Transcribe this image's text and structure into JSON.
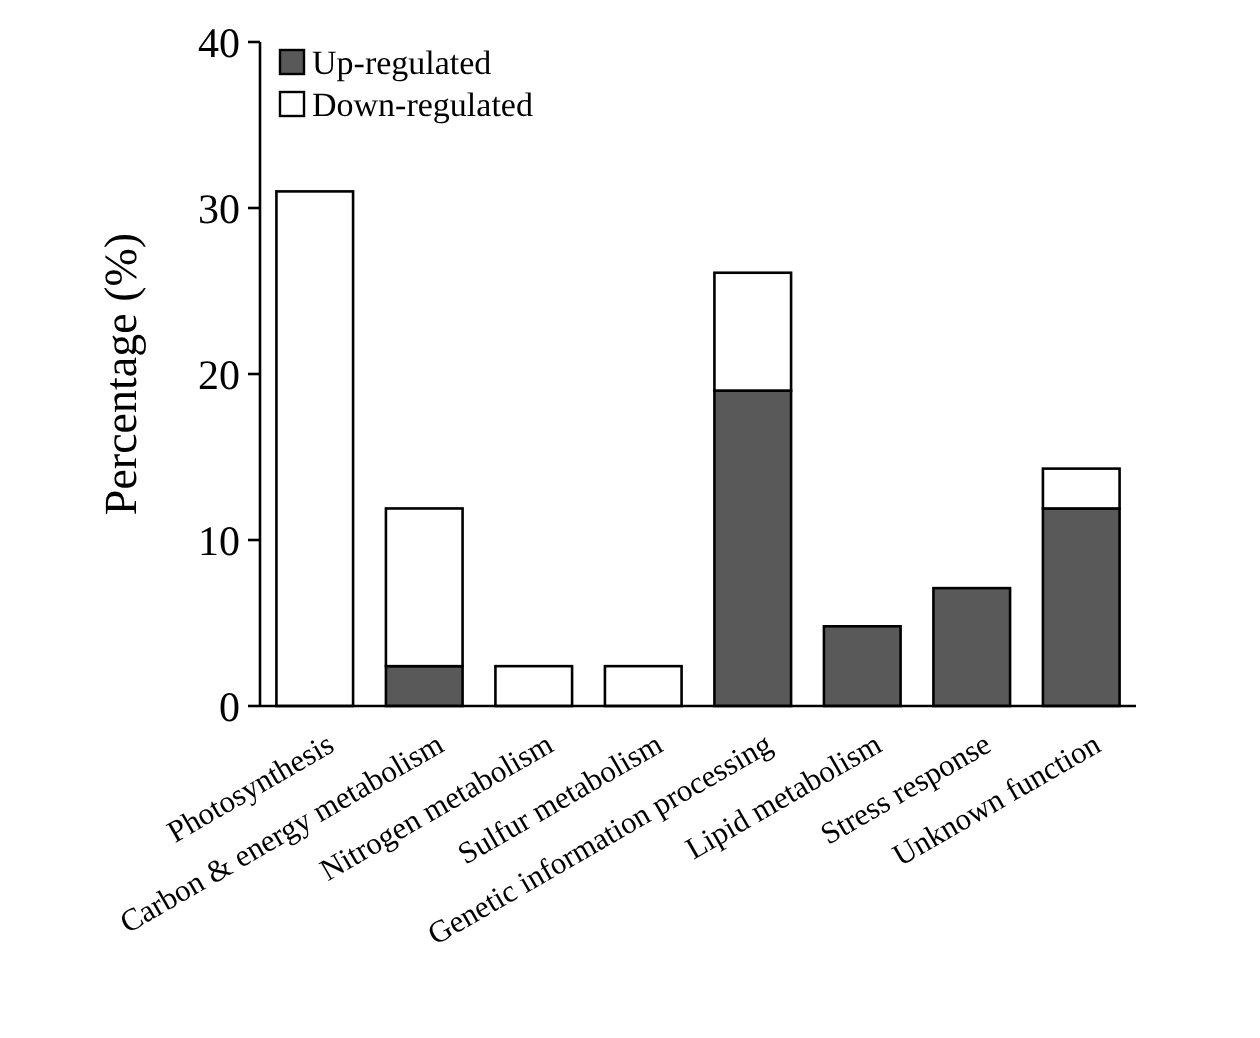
{
  "chart_data": {
    "type": "bar",
    "ylabel": "Percentage (%)",
    "stacked": true,
    "legend": "top left",
    "grid": false,
    "categories": [
      "Photosynthesis",
      "Carbon & energy metabolism",
      "Nitrogen metabolism",
      "Sulfur metabolism",
      "Genetic information processing",
      "Lipid metabolism",
      "Stress response",
      "Unknown function"
    ],
    "series": [
      {
        "name": "Up-regulated",
        "color": "#595959",
        "values": [
          0,
          2.4,
          0,
          0,
          19.0,
          4.8,
          7.1,
          11.9
        ]
      },
      {
        "name": "Down-regulated",
        "color": "#ffffff",
        "values": [
          31.0,
          9.5,
          2.4,
          2.4,
          7.1,
          0,
          0,
          2.4
        ]
      }
    ],
    "ylim": [
      0,
      40
    ],
    "yticks": [
      0,
      10,
      20,
      30,
      40
    ]
  }
}
